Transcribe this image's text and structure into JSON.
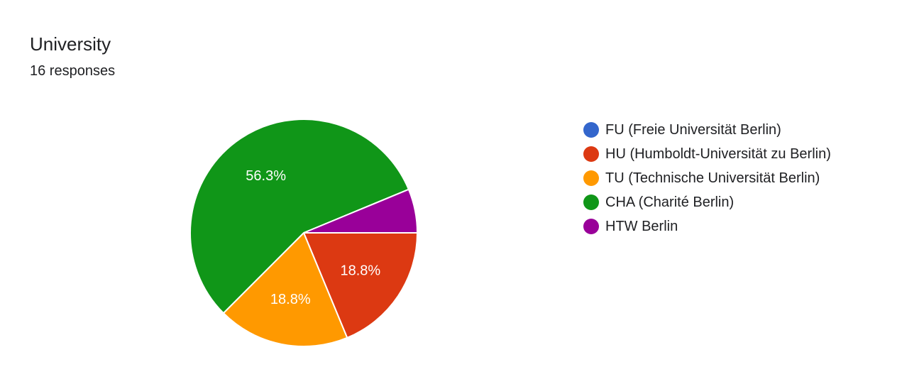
{
  "title": "University",
  "responses": "16 responses",
  "chart_data": {
    "type": "pie",
    "title": "University",
    "total_responses": 16,
    "slices": [
      {
        "name": "FU (Freie Universität Berlin)",
        "count": 0,
        "percent": 0,
        "label": "",
        "color": "#3366cc"
      },
      {
        "name": "HU (Humboldt-Universität zu Berlin)",
        "count": 3,
        "percent": 18.8,
        "label": "18.8%",
        "color": "#dc3912"
      },
      {
        "name": "TU (Technische Universität Berlin)",
        "count": 3,
        "percent": 18.8,
        "label": "18.8%",
        "color": "#ff9900"
      },
      {
        "name": "CHA (Charité Berlin)",
        "count": 9,
        "percent": 56.3,
        "label": "56.3%",
        "color": "#109618"
      },
      {
        "name": "HTW Berlin",
        "count": 1,
        "percent": 6.3,
        "label": "",
        "color": "#990099"
      }
    ],
    "start": "3 o'clock",
    "direction": "clockwise",
    "legend_position": "right"
  }
}
